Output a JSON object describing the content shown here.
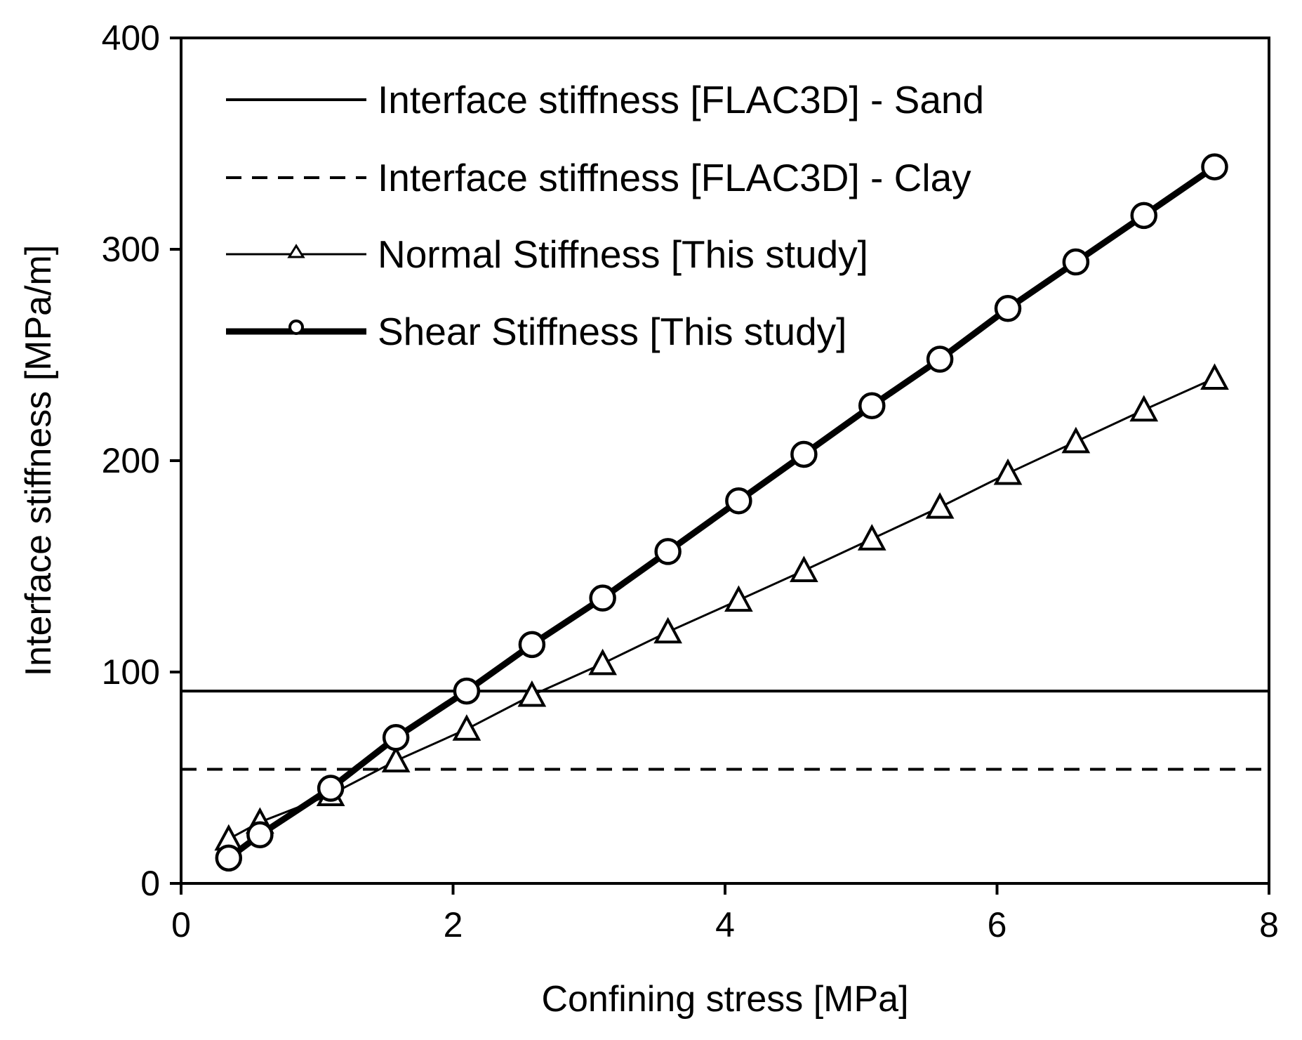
{
  "chart_data": {
    "type": "line",
    "title": "",
    "xlabel": "Confining stress [MPa]",
    "ylabel": "Interface stiffness [MPa/m]",
    "xlim": [
      0,
      8
    ],
    "ylim": [
      0,
      400
    ],
    "x_ticks": [
      0,
      2,
      4,
      6,
      8
    ],
    "y_ticks": [
      0,
      100,
      200,
      300,
      400
    ],
    "x_tick_labels": [
      "0",
      "2",
      "4",
      "6",
      "8"
    ],
    "y_tick_labels": [
      "0",
      "100",
      "200",
      "300",
      "400"
    ],
    "grid": false,
    "legend_position": "top-left",
    "series": [
      {
        "name": "Interface stiffness [FLAC3D] - Sand",
        "style": "solid",
        "marker": "none",
        "weight": "medium",
        "x": [
          0,
          8
        ],
        "values": [
          91,
          91
        ]
      },
      {
        "name": "Interface stiffness [FLAC3D] - Clay",
        "style": "dashed",
        "marker": "none",
        "weight": "medium",
        "x": [
          0,
          8
        ],
        "values": [
          54,
          54
        ]
      },
      {
        "name": "Normal Stiffness [This study]",
        "style": "solid",
        "marker": "triangle",
        "weight": "thin",
        "x": [
          0.35,
          0.58,
          1.1,
          1.58,
          2.1,
          2.58,
          3.1,
          3.58,
          4.1,
          4.58,
          5.08,
          5.58,
          6.08,
          6.58,
          7.08,
          7.6
        ],
        "values": [
          21,
          29,
          42,
          58,
          73,
          89,
          104,
          119,
          134,
          148,
          163,
          178,
          194,
          209,
          224,
          239
        ]
      },
      {
        "name": "Shear Stiffness [This study]",
        "style": "solid",
        "marker": "circle",
        "weight": "thick",
        "x": [
          0.35,
          0.58,
          1.1,
          1.58,
          2.1,
          2.58,
          3.1,
          3.58,
          4.1,
          4.58,
          5.08,
          5.58,
          6.08,
          6.58,
          7.08,
          7.6
        ],
        "values": [
          12,
          23,
          45,
          69,
          91,
          113,
          135,
          157,
          181,
          203,
          226,
          248,
          272,
          294,
          316,
          339
        ]
      }
    ]
  }
}
